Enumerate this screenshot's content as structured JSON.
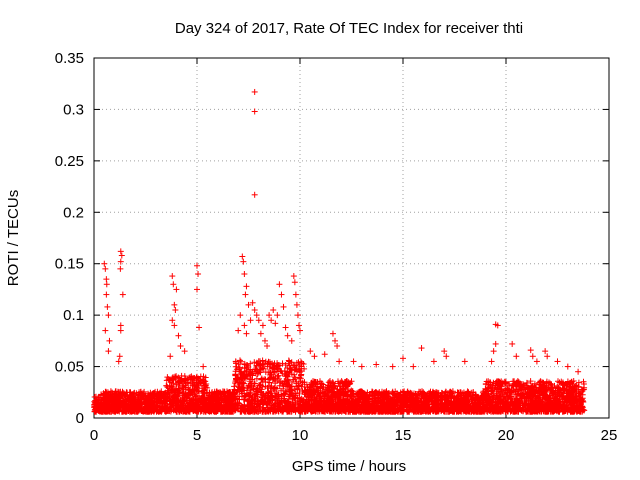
{
  "chart_data": {
    "type": "scatter",
    "title": "Day 324 of 2017, Rate Of TEC Index for receiver thti",
    "xlabel": "GPS time / hours",
    "ylabel": "ROTI / TECUs",
    "xlim": [
      0,
      25
    ],
    "ylim": [
      0,
      0.35
    ],
    "xticks": [
      0,
      5,
      10,
      15,
      20,
      25
    ],
    "xtick_labels": [
      "0",
      "5",
      "10",
      "15",
      "20",
      "25"
    ],
    "yticks": [
      0,
      0.05,
      0.1,
      0.15,
      0.2,
      0.25,
      0.3,
      0.35
    ],
    "ytick_labels": [
      "0",
      "0.05",
      "0.1",
      "0.15",
      "0.2",
      "0.25",
      "0.3",
      "0.35"
    ],
    "grid": true,
    "marker": "+",
    "color": "#ff0000",
    "series": [
      {
        "name": "ROTI",
        "points": [
          [
            0.5,
            0.15
          ],
          [
            0.55,
            0.145
          ],
          [
            0.6,
            0.135
          ],
          [
            0.62,
            0.13
          ],
          [
            0.6,
            0.12
          ],
          [
            0.65,
            0.108
          ],
          [
            0.7,
            0.1
          ],
          [
            0.55,
            0.085
          ],
          [
            0.75,
            0.075
          ],
          [
            0.7,
            0.065
          ],
          [
            1.3,
            0.162
          ],
          [
            1.35,
            0.158
          ],
          [
            1.3,
            0.152
          ],
          [
            1.28,
            0.145
          ],
          [
            1.4,
            0.12
          ],
          [
            1.3,
            0.09
          ],
          [
            1.3,
            0.085
          ],
          [
            1.25,
            0.06
          ],
          [
            1.2,
            0.055
          ],
          [
            3.8,
            0.138
          ],
          [
            3.85,
            0.13
          ],
          [
            4.0,
            0.125
          ],
          [
            3.9,
            0.11
          ],
          [
            3.95,
            0.105
          ],
          [
            3.8,
            0.095
          ],
          [
            3.9,
            0.09
          ],
          [
            4.1,
            0.08
          ],
          [
            4.2,
            0.07
          ],
          [
            4.4,
            0.065
          ],
          [
            3.7,
            0.06
          ],
          [
            5.0,
            0.148
          ],
          [
            5.05,
            0.14
          ],
          [
            5.0,
            0.125
          ],
          [
            5.1,
            0.088
          ],
          [
            5.3,
            0.05
          ],
          [
            7.2,
            0.157
          ],
          [
            7.25,
            0.152
          ],
          [
            7.3,
            0.14
          ],
          [
            7.4,
            0.128
          ],
          [
            7.35,
            0.12
          ],
          [
            7.5,
            0.11
          ],
          [
            7.1,
            0.1
          ],
          [
            7.6,
            0.095
          ],
          [
            7.3,
            0.09
          ],
          [
            7.0,
            0.085
          ],
          [
            7.4,
            0.082
          ],
          [
            7.8,
            0.317
          ],
          [
            7.8,
            0.298
          ],
          [
            7.8,
            0.217
          ],
          [
            7.7,
            0.112
          ],
          [
            7.8,
            0.105
          ],
          [
            7.9,
            0.1
          ],
          [
            8.0,
            0.095
          ],
          [
            8.2,
            0.09
          ],
          [
            8.1,
            0.082
          ],
          [
            8.3,
            0.075
          ],
          [
            8.4,
            0.07
          ],
          [
            8.5,
            0.1
          ],
          [
            8.6,
            0.095
          ],
          [
            8.7,
            0.105
          ],
          [
            8.8,
            0.092
          ],
          [
            8.9,
            0.1
          ],
          [
            9.0,
            0.13
          ],
          [
            9.1,
            0.12
          ],
          [
            9.2,
            0.108
          ],
          [
            9.3,
            0.088
          ],
          [
            9.4,
            0.08
          ],
          [
            9.7,
            0.138
          ],
          [
            9.75,
            0.132
          ],
          [
            9.8,
            0.12
          ],
          [
            9.85,
            0.11
          ],
          [
            9.9,
            0.1
          ],
          [
            9.95,
            0.09
          ],
          [
            10.0,
            0.085
          ],
          [
            9.6,
            0.075
          ],
          [
            10.5,
            0.065
          ],
          [
            10.7,
            0.06
          ],
          [
            11.2,
            0.062
          ],
          [
            11.6,
            0.082
          ],
          [
            11.7,
            0.075
          ],
          [
            11.8,
            0.07
          ],
          [
            11.9,
            0.055
          ],
          [
            12.6,
            0.055
          ],
          [
            13.0,
            0.05
          ],
          [
            13.7,
            0.052
          ],
          [
            14.5,
            0.05
          ],
          [
            15.0,
            0.058
          ],
          [
            15.5,
            0.05
          ],
          [
            15.9,
            0.068
          ],
          [
            16.5,
            0.055
          ],
          [
            17.0,
            0.065
          ],
          [
            17.1,
            0.06
          ],
          [
            18.0,
            0.055
          ],
          [
            19.5,
            0.091
          ],
          [
            19.6,
            0.09
          ],
          [
            19.5,
            0.072
          ],
          [
            19.4,
            0.065
          ],
          [
            19.3,
            0.055
          ],
          [
            20.3,
            0.072
          ],
          [
            20.5,
            0.06
          ],
          [
            21.2,
            0.066
          ],
          [
            21.3,
            0.06
          ],
          [
            21.5,
            0.055
          ],
          [
            21.9,
            0.065
          ],
          [
            22.0,
            0.06
          ],
          [
            22.5,
            0.055
          ],
          [
            23.0,
            0.05
          ],
          [
            23.5,
            0.045
          ]
        ]
      }
    ]
  }
}
